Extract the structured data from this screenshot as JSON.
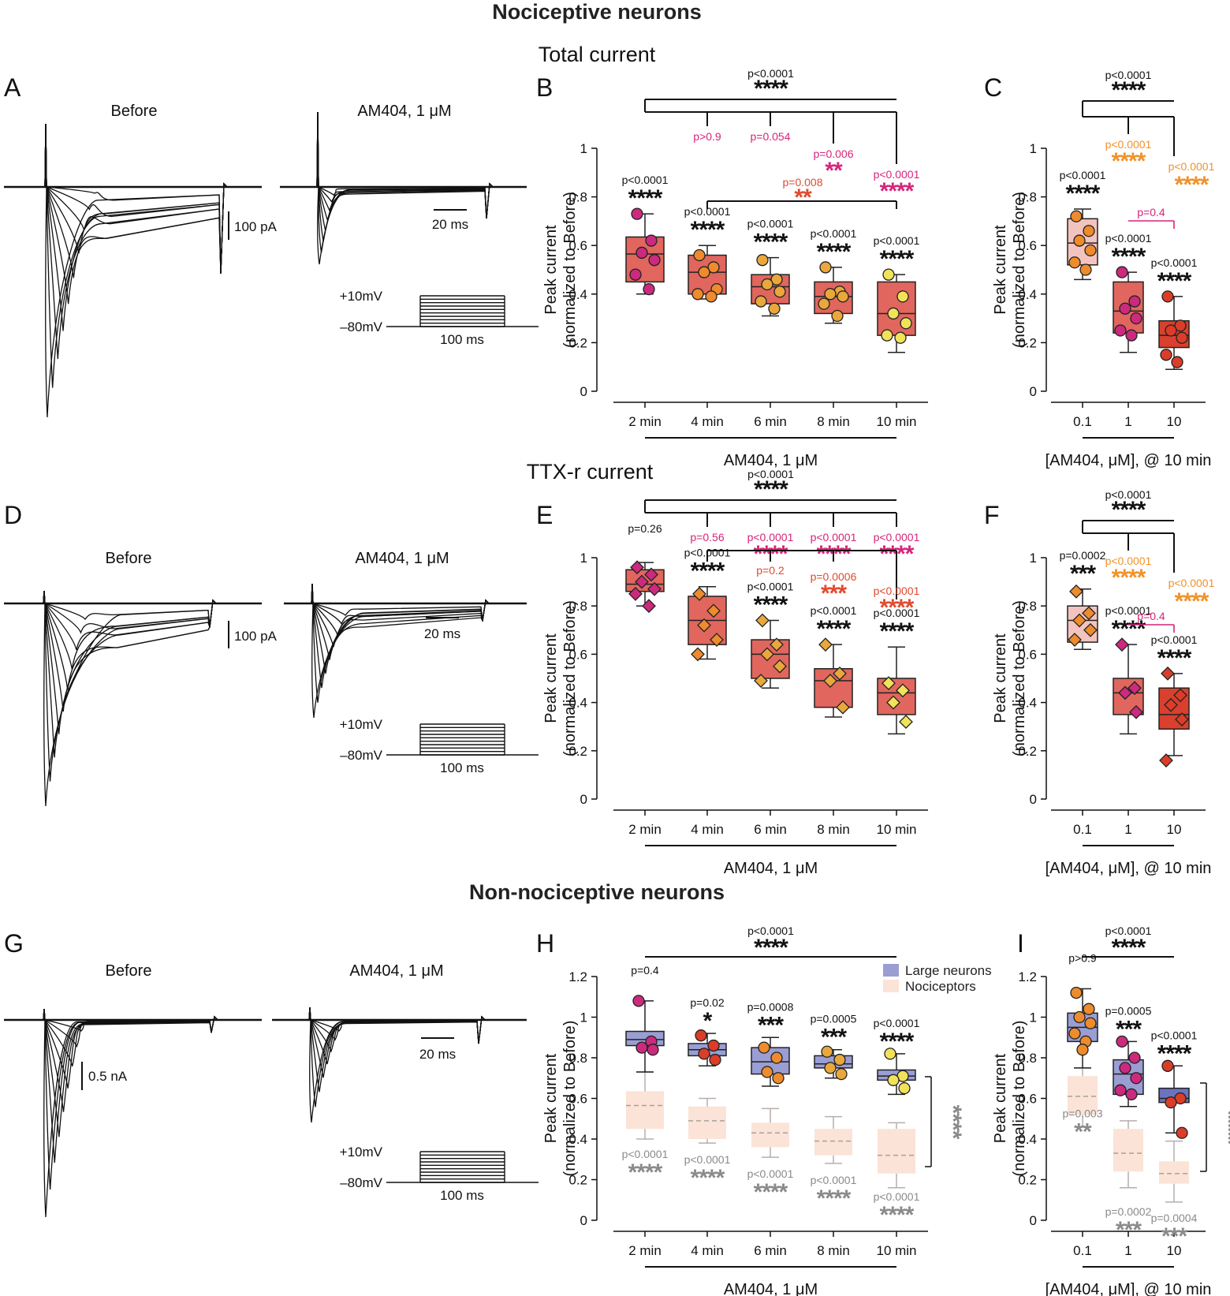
{
  "titles": {
    "section_top": "Nociceptive neurons",
    "sub_total": "Total current",
    "sub_ttx": "TTX-r current",
    "section_bottom": "Non-nociceptive neurons"
  },
  "traces": {
    "A": {
      "letter": "A",
      "before": "Before",
      "after": "AM404, 1 μM",
      "scale_current": "100 pA",
      "scale_time": "20 ms"
    },
    "D": {
      "letter": "D",
      "before": "Before",
      "after": "AM404, 1 μM",
      "scale_current": "100 pA",
      "scale_time": "20 ms"
    },
    "G": {
      "letter": "G",
      "before": "Before",
      "after": "AM404, 1 μM",
      "scale_current": "0.5 nA",
      "scale_time": "20 ms"
    },
    "protocol": {
      "high": "+10mV",
      "low": "–80mV",
      "duration": "100 ms"
    }
  },
  "colors": {
    "time_box": "#e0665e",
    "conc_low": "#f3c4bf",
    "conc_mid": "#e0665e",
    "conc_high": "#d9402d",
    "large_box": "#9b9ed3",
    "large_box_dark": "#6d72bd",
    "noci_box": "#fbe3d7",
    "star_black": "#111111",
    "star_magenta": "#d6247a",
    "star_orange": "#f0922b",
    "star_red": "#e04a2e",
    "star_gray": "#8a8a8a",
    "pt_magenta": "#cc2a7e",
    "pt_orange": "#ee8b2d",
    "pt_ochre": "#e9a73c",
    "pt_yellow": "#f1e25a",
    "pt_red": "#dc3d28"
  },
  "chart_data": [
    {
      "panel": "B",
      "type": "box",
      "title": "Total current",
      "ylabel": "Peak current",
      "ylabel2": "(normalized to Before)",
      "xlabel": "AM404, 1 μM",
      "ylim": [
        0,
        1
      ],
      "yticks": [
        "0",
        "0.2",
        "0.4",
        "0.6",
        "0.8",
        "1"
      ],
      "categories": [
        "2 min",
        "4 min",
        "6 min",
        "8 min",
        "10 min"
      ],
      "boxes": [
        {
          "min": 0.4,
          "q1": 0.45,
          "median": 0.565,
          "q3": 0.635,
          "max": 0.73,
          "points": [
            0.73,
            0.62,
            0.57,
            0.54,
            0.48,
            0.42
          ]
        },
        {
          "min": 0.38,
          "q1": 0.4,
          "median": 0.49,
          "q3": 0.56,
          "max": 0.6,
          "points": [
            0.56,
            0.51,
            0.49,
            0.42,
            0.4,
            0.39
          ]
        },
        {
          "min": 0.31,
          "q1": 0.36,
          "median": 0.43,
          "q3": 0.48,
          "max": 0.55,
          "points": [
            0.54,
            0.46,
            0.44,
            0.41,
            0.37,
            0.34
          ]
        },
        {
          "min": 0.28,
          "q1": 0.32,
          "median": 0.39,
          "q3": 0.45,
          "max": 0.51,
          "points": [
            0.51,
            0.41,
            0.4,
            0.39,
            0.36,
            0.31
          ]
        },
        {
          "min": 0.16,
          "q1": 0.23,
          "median": 0.32,
          "q3": 0.45,
          "max": 0.48,
          "points": [
            0.48,
            0.39,
            0.32,
            0.28,
            0.23,
            0.22
          ]
        }
      ],
      "box_stats": [
        {
          "p": "p<0.0001",
          "stars": "****"
        },
        {
          "p": "p<0.0001",
          "stars": "****"
        },
        {
          "p": "p<0.0001",
          "stars": "****"
        },
        {
          "p": "p<0.0001",
          "stars": "****"
        },
        {
          "p": "p<0.0001",
          "stars": "****"
        }
      ],
      "vs_2min": [
        {
          "p": "p>0.9",
          "stars": ""
        },
        {
          "p": "p=0.054",
          "stars": ""
        },
        {
          "p": "p=0.006",
          "stars": "**"
        },
        {
          "p": "p<0.0001",
          "stars": "****"
        }
      ],
      "vs_4min": {
        "p": "p=0.008",
        "stars": "**"
      },
      "overall": {
        "p": "p<0.0001",
        "stars": "****"
      }
    },
    {
      "panel": "C",
      "type": "box",
      "ylabel": "Peak current",
      "ylabel2": "(normalized to Before)",
      "xlabel": "[AM404, μM], @ 10 min",
      "ylim": [
        0,
        1
      ],
      "yticks": [
        "0",
        "0.2",
        "0.4",
        "0.6",
        "0.8",
        "1"
      ],
      "categories": [
        "0.1",
        "1",
        "10"
      ],
      "boxes": [
        {
          "min": 0.46,
          "q1": 0.52,
          "median": 0.61,
          "q3": 0.71,
          "max": 0.75,
          "points": [
            0.72,
            0.66,
            0.62,
            0.58,
            0.53,
            0.5
          ]
        },
        {
          "min": 0.16,
          "q1": 0.24,
          "median": 0.33,
          "q3": 0.45,
          "max": 0.49,
          "points": [
            0.49,
            0.37,
            0.34,
            0.3,
            0.25,
            0.23
          ]
        },
        {
          "min": 0.09,
          "q1": 0.18,
          "median": 0.23,
          "q3": 0.29,
          "max": 0.39,
          "points": [
            0.39,
            0.27,
            0.25,
            0.22,
            0.15,
            0.12
          ]
        }
      ],
      "box_stats": [
        {
          "p": "p<0.0001",
          "stars": "****"
        },
        {
          "p": "p<0.0001",
          "stars": "****"
        },
        {
          "p": "p<0.0001",
          "stars": "****"
        }
      ],
      "vs_01": [
        {
          "p": "p<0.0001",
          "stars": "****"
        },
        {
          "p": "p<0.0001",
          "stars": "****"
        }
      ],
      "vs_1": {
        "p": "p=0.4",
        "stars": ""
      },
      "overall": {
        "p": "p<0.0001",
        "stars": "****"
      }
    },
    {
      "panel": "E",
      "type": "box",
      "title": "TTX-r current",
      "ylabel": "Peak current",
      "ylabel2": "(normalized to Before)",
      "xlabel": "AM404, 1 μM",
      "ylim": [
        0,
        1
      ],
      "yticks": [
        "0",
        "0.2",
        "0.4",
        "0.6",
        "0.8",
        "1"
      ],
      "categories": [
        "2 min",
        "4 min",
        "6 min",
        "8 min",
        "10 min"
      ],
      "boxes": [
        {
          "min": 0.8,
          "q1": 0.86,
          "median": 0.89,
          "q3": 0.95,
          "max": 0.98,
          "points": [
            0.96,
            0.93,
            0.9,
            0.87,
            0.85,
            0.8
          ]
        },
        {
          "min": 0.58,
          "q1": 0.64,
          "median": 0.74,
          "q3": 0.84,
          "max": 0.88,
          "points": [
            0.85,
            0.78,
            0.72,
            0.66,
            0.6
          ]
        },
        {
          "min": 0.46,
          "q1": 0.5,
          "median": 0.6,
          "q3": 0.66,
          "max": 0.74,
          "points": [
            0.74,
            0.64,
            0.6,
            0.55,
            0.49
          ]
        },
        {
          "min": 0.34,
          "q1": 0.38,
          "median": 0.49,
          "q3": 0.54,
          "max": 0.64,
          "points": [
            0.64,
            0.52,
            0.49,
            0.38
          ]
        },
        {
          "min": 0.27,
          "q1": 0.35,
          "median": 0.44,
          "q3": 0.5,
          "max": 0.63,
          "points": [
            0.48,
            0.45,
            0.4,
            0.32
          ]
        }
      ],
      "box_stats": [
        {
          "p": "p=0.26",
          "stars": ""
        },
        {
          "p": "p<0.0001",
          "stars": "****"
        },
        {
          "p": "p<0.0001",
          "stars": "****"
        },
        {
          "p": "p<0.0001",
          "stars": "****"
        },
        {
          "p": "p<0.0001",
          "stars": "****"
        }
      ],
      "vs_2min": [
        {
          "p": "p=0.56",
          "stars": ""
        },
        {
          "p": "p<0.0001",
          "stars": "****"
        },
        {
          "p": "p<0.0001",
          "stars": "****"
        },
        {
          "p": "p<0.0001",
          "stars": "****"
        }
      ],
      "vs_4min": [
        {
          "p": "p=0.2",
          "stars": ""
        },
        {
          "p": "p=0.0006",
          "stars": "***"
        },
        {
          "p": "p<0.0001",
          "stars": "****"
        }
      ],
      "overall": {
        "p": "p<0.0001",
        "stars": "****"
      }
    },
    {
      "panel": "F",
      "type": "box",
      "ylabel": "Peak current",
      "ylabel2": "(normalized to Before)",
      "xlabel": "[AM404, μM], @ 10 min",
      "ylim": [
        0,
        1
      ],
      "yticks": [
        "0",
        "0.2",
        "0.4",
        "0.6",
        "0.8",
        "1"
      ],
      "categories": [
        "0.1",
        "1",
        "10"
      ],
      "boxes": [
        {
          "min": 0.62,
          "q1": 0.65,
          "median": 0.74,
          "q3": 0.8,
          "max": 0.87,
          "points": [
            0.86,
            0.77,
            0.74,
            0.7,
            0.66
          ]
        },
        {
          "min": 0.27,
          "q1": 0.35,
          "median": 0.44,
          "q3": 0.5,
          "max": 0.64,
          "points": [
            0.64,
            0.46,
            0.44,
            0.36
          ]
        },
        {
          "min": 0.18,
          "q1": 0.29,
          "median": 0.35,
          "q3": 0.46,
          "max": 0.52,
          "points": [
            0.52,
            0.43,
            0.39,
            0.33,
            0.16
          ]
        }
      ],
      "box_stats": [
        {
          "p": "p=0.0002",
          "stars": "***"
        },
        {
          "p": "p<0.0001",
          "stars": "****"
        },
        {
          "p": "p<0.0001",
          "stars": "****"
        }
      ],
      "vs_01": [
        {
          "p": "p<0.0001",
          "stars": "****"
        },
        {
          "p": "p<0.0001",
          "stars": "****"
        }
      ],
      "vs_1": {
        "p": "p=0.4",
        "stars": ""
      },
      "overall": {
        "p": "p<0.0001",
        "stars": "****"
      }
    },
    {
      "panel": "H",
      "type": "box",
      "ylabel": "Peak current",
      "ylabel2": "(normalized to Before)",
      "xlabel": "AM404, 1 μM",
      "ylim": [
        0,
        1.2
      ],
      "yticks": [
        "0",
        "0.2",
        "0.4",
        "0.6",
        "0.8",
        "1",
        "1.2"
      ],
      "categories": [
        "2 min",
        "4 min",
        "6 min",
        "8 min",
        "10 min"
      ],
      "legend": [
        "Large neurons",
        "Nociceptors"
      ],
      "boxes": [
        {
          "min": 0.73,
          "q1": 0.86,
          "median": 0.89,
          "q3": 0.93,
          "max": 1.08,
          "points": [
            1.08,
            0.88,
            0.85,
            0.84
          ]
        },
        {
          "min": 0.76,
          "q1": 0.81,
          "median": 0.84,
          "q3": 0.87,
          "max": 0.92,
          "points": [
            0.91,
            0.86,
            0.82,
            0.79
          ]
        },
        {
          "min": 0.66,
          "q1": 0.72,
          "median": 0.78,
          "q3": 0.85,
          "max": 0.9,
          "points": [
            0.85,
            0.8,
            0.73,
            0.7
          ]
        },
        {
          "min": 0.7,
          "q1": 0.75,
          "median": 0.77,
          "q3": 0.81,
          "max": 0.84,
          "points": [
            0.83,
            0.79,
            0.75,
            0.72
          ]
        },
        {
          "min": 0.62,
          "q1": 0.69,
          "median": 0.71,
          "q3": 0.74,
          "max": 0.82,
          "points": [
            0.82,
            0.71,
            0.69,
            0.65
          ]
        }
      ],
      "boxes_nociceptors": [
        {
          "min": 0.4,
          "q1": 0.45,
          "median": 0.565,
          "q3": 0.635,
          "max": 0.73
        },
        {
          "min": 0.38,
          "q1": 0.4,
          "median": 0.49,
          "q3": 0.56,
          "max": 0.6
        },
        {
          "min": 0.31,
          "q1": 0.36,
          "median": 0.43,
          "q3": 0.48,
          "max": 0.55
        },
        {
          "min": 0.28,
          "q1": 0.32,
          "median": 0.39,
          "q3": 0.45,
          "max": 0.51
        },
        {
          "min": 0.16,
          "q1": 0.23,
          "median": 0.32,
          "q3": 0.45,
          "max": 0.48
        }
      ],
      "box_stats": [
        {
          "p": "p=0.4",
          "stars": ""
        },
        {
          "p": "p=0.02",
          "stars": "*"
        },
        {
          "p": "p=0.0008",
          "stars": "***"
        },
        {
          "p": "p=0.0005",
          "stars": "***"
        },
        {
          "p": "p<0.0001",
          "stars": "****"
        }
      ],
      "noci_stats": [
        {
          "p": "p<0.0001",
          "stars": "****"
        },
        {
          "p": "p<0.0001",
          "stars": "****"
        },
        {
          "p": "p<0.0001",
          "stars": "****"
        },
        {
          "p": "p<0.0001",
          "stars": "****"
        },
        {
          "p": "p<0.0001",
          "stars": "****"
        }
      ],
      "between_groups": {
        "stars": "****"
      },
      "overall": {
        "p": "p<0.0001",
        "stars": "****"
      }
    },
    {
      "panel": "I",
      "type": "box",
      "ylabel": "Peak current",
      "ylabel2": "(normalized to Before)",
      "xlabel": "[AM404, μM], @ 10 min",
      "ylim": [
        0,
        1.2
      ],
      "yticks": [
        "0",
        "0.2",
        "0.4",
        "0.6",
        "0.8",
        "1",
        "1.2"
      ],
      "categories": [
        "0.1",
        "1",
        "10"
      ],
      "boxes": [
        {
          "min": 0.75,
          "q1": 0.88,
          "median": 0.95,
          "q3": 1.02,
          "max": 1.14,
          "points": [
            1.12,
            1.04,
            1.0,
            0.97,
            0.92,
            0.88,
            0.84
          ]
        },
        {
          "min": 0.56,
          "q1": 0.62,
          "median": 0.72,
          "q3": 0.79,
          "max": 0.88,
          "points": [
            0.88,
            0.8,
            0.75,
            0.7,
            0.64,
            0.62
          ]
        },
        {
          "min": 0.43,
          "q1": 0.58,
          "median": 0.6,
          "q3": 0.65,
          "max": 0.76,
          "points": [
            0.76,
            0.6,
            0.58,
            0.43
          ]
        }
      ],
      "boxes_nociceptors": [
        {
          "min": 0.46,
          "q1": 0.52,
          "median": 0.61,
          "q3": 0.71,
          "max": 0.75
        },
        {
          "min": 0.16,
          "q1": 0.24,
          "median": 0.33,
          "q3": 0.45,
          "max": 0.49
        },
        {
          "min": 0.09,
          "q1": 0.18,
          "median": 0.23,
          "q3": 0.29,
          "max": 0.39
        }
      ],
      "box_stats": [
        {
          "p": "p>0.9",
          "stars": ""
        },
        {
          "p": "p=0.0005",
          "stars": "***"
        },
        {
          "p": "p<0.0001",
          "stars": "****"
        }
      ],
      "noci_stats": [
        {
          "p": "p=0.003",
          "stars": "**"
        },
        {
          "p": "p=0.0002",
          "stars": "***"
        },
        {
          "p": "p=0.0004",
          "stars": "***"
        }
      ],
      "between_groups": {
        "stars": "****"
      },
      "overall": {
        "p": "p<0.0001",
        "stars": "****"
      }
    }
  ]
}
